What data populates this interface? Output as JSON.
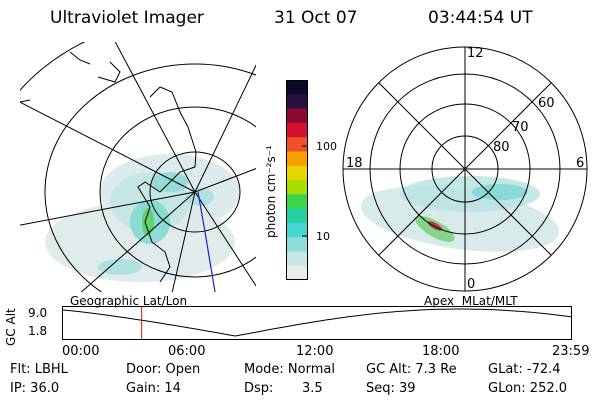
{
  "header": {
    "instrument": "Ultraviolet Imager",
    "date": "31 Oct 07",
    "time": "03:44:54 UT"
  },
  "colorbar": {
    "unit_label": "photon cm⁻²s⁻¹",
    "ticks": [
      "100",
      "10"
    ],
    "colors": [
      "#0a0a2a",
      "#2a1040",
      "#8a0a30",
      "#d4102c",
      "#f2502a",
      "#f7a000",
      "#e9d400",
      "#a6e000",
      "#3ad44a",
      "#26d0a0",
      "#46d6d0",
      "#8cdcdc",
      "#c8e6e6",
      "#e9ecec"
    ]
  },
  "left_map": {
    "caption": "Geographic Lat/Lon"
  },
  "right_map": {
    "caption": "Apex  MLat/MLT",
    "mlt_labels": [
      "12",
      "18",
      "6",
      "0"
    ],
    "mlat_labels": [
      "60",
      "70",
      "80"
    ]
  },
  "altitude_plot": {
    "ylabel": "GC Alt",
    "y_ticks": [
      "9.0",
      "1.8"
    ],
    "x_ticks": [
      "00:00",
      "06:00",
      "12:00",
      "18:00",
      "23:59"
    ],
    "marker_time": "03:44:54",
    "marker_color": "#e01010"
  },
  "footer": {
    "flt": "Flt: LBHL",
    "ip": "IP: 36.0",
    "door": "Door: Open",
    "gain": "Gain: 14",
    "mode": "Mode: Normal",
    "dsp_label": "Dsp:",
    "dsp_value": "3.5",
    "gc_alt": "GC Alt: 7.3 Re",
    "seq": "Seq: 39",
    "glat": "GLat: -72.4",
    "glon": "GLon: 252.0"
  }
}
